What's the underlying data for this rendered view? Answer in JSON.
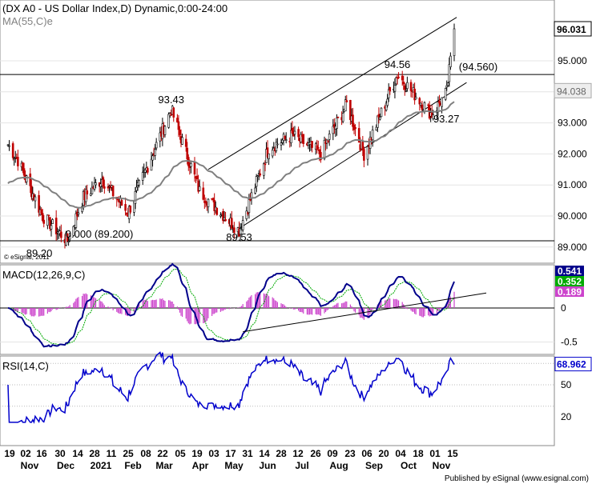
{
  "main_panel": {
    "title": "(DX A0 - US Dollar Index,D) Dynamic,0:00-24:00",
    "ma_label": "MA(55,C)e",
    "copyright": "© eSignal, 2011",
    "last_price": "96.031",
    "ma_value": "94.038",
    "y_ticks": [
      "95.000",
      "93.000",
      "92.000",
      "91.000",
      "90.000",
      "89.000"
    ]
  },
  "macd_panel": {
    "label": "MACD(12,26,9,C)",
    "values": [
      "0.541",
      "0.352",
      "0.189"
    ],
    "y_ticks": [
      "0",
      "-0.5"
    ]
  },
  "rsi_panel": {
    "label": "RSI(14,C)",
    "value": "68.962",
    "y_ticks": [
      "50",
      "20"
    ]
  },
  "x_axis": {
    "days": [
      "19",
      "02",
      "16",
      "30",
      "14",
      "28",
      "11",
      "25",
      "08",
      "22",
      "05",
      "19",
      "03",
      "17",
      "31",
      "14",
      "28",
      "12",
      "26",
      "09",
      "23",
      "06",
      "20",
      "04",
      "18",
      "01",
      "15"
    ],
    "months": [
      "Nov",
      "Dec",
      "2021",
      "Feb",
      "Mar",
      "Apr",
      "May",
      "Jun",
      "Jul",
      "Aug",
      "Sep",
      "Oct",
      "Nov"
    ]
  },
  "footer": "Published by eSignal (www.esignal.com)",
  "colors": {
    "up": "#000000",
    "down": "#c00000",
    "ma": "#808080",
    "macd": "#00008b",
    "signal": "#00aa00",
    "histogram": "#cc44cc",
    "rsi": "#0000cc"
  },
  "chart_data": {
    "type": "candlestick",
    "title": "(DX A0 - US Dollar Index,D) Dynamic,0:00-24:00",
    "ylim": [
      88.8,
      96.4
    ],
    "x_range": [
      "2020-11-19",
      "2021-11-15"
    ],
    "series": [
      {
        "name": "US Dollar Index",
        "key_closes": [
          [
            "2020-11-19",
            92.3
          ],
          [
            "2020-11-27",
            91.8
          ],
          [
            "2020-12-17",
            90.0
          ],
          [
            "2021-01-06",
            89.2
          ],
          [
            "2021-01-19",
            90.6
          ],
          [
            "2021-02-03",
            91.2
          ],
          [
            "2021-02-24",
            90.1
          ],
          [
            "2021-03-31",
            93.43
          ],
          [
            "2021-04-23",
            90.8
          ],
          [
            "2021-05-25",
            89.53
          ],
          [
            "2021-06-18",
            92.2
          ],
          [
            "2021-07-07",
            92.6
          ],
          [
            "2021-07-30",
            92.0
          ],
          [
            "2021-08-20",
            93.6
          ],
          [
            "2021-09-03",
            92.0
          ],
          [
            "2021-09-30",
            94.56
          ],
          [
            "2021-10-28",
            93.27
          ],
          [
            "2021-11-09",
            94.0
          ],
          [
            "2021-11-15",
            96.031
          ]
        ]
      },
      {
        "name": "MA(55,C)e",
        "last": 94.038
      }
    ],
    "annotations": [
      {
        "text": "93.43",
        "date": "2021-03-31",
        "value": 93.43
      },
      {
        "text": "94.56",
        "date": "2021-09-30",
        "value": 94.56
      },
      {
        "text": "(94.560)",
        "date": "2021-11-15",
        "value": 94.56
      },
      {
        "text": "93.27",
        "date": "2021-10-28",
        "value": 93.27
      },
      {
        "text": "89.53",
        "date": "2021-05-25",
        "value": 89.53
      },
      {
        "text": "89.20",
        "date": "2021-01-06",
        "value": 89.2
      },
      {
        "text": "0.000 (89.200)",
        "date": "2021-01-06",
        "value": 89.2
      }
    ],
    "horizontal_lines": [
      94.56,
      89.2
    ],
    "trend_channel": {
      "upper": [
        [
          "2021-04-30",
          91.5
        ],
        [
          "2021-11-17",
          96.4
        ]
      ],
      "lower": [
        [
          "2021-05-25",
          89.6
        ],
        [
          "2021-11-25",
          94.3
        ]
      ]
    },
    "macd": {
      "macd": 0.541,
      "signal": 0.352,
      "histogram": 0.189,
      "ylim": [
        -0.75,
        0.75
      ]
    },
    "rsi": {
      "value": 68.962,
      "ylim": [
        0,
        100
      ],
      "levels": [
        70,
        50,
        30
      ]
    }
  }
}
